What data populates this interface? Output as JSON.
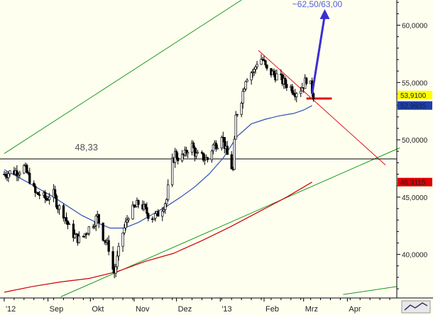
{
  "chart_data": {
    "type": "candlestick",
    "title": "",
    "xlabel": "",
    "ylabel": "",
    "ylim": [
      36.2,
      62.2
    ],
    "y_ticks": [
      40,
      45,
      50,
      55,
      60
    ],
    "y_tick_labels": [
      "40,0000",
      "45,0000",
      "50,0000",
      "55,0000",
      "60,0000"
    ],
    "x_ticks": [
      {
        "day": 0,
        "label": "'12"
      },
      {
        "day": 31,
        "label": "Sep"
      },
      {
        "day": 61,
        "label": "Okt"
      },
      {
        "day": 92,
        "label": "Nov"
      },
      {
        "day": 122,
        "label": "Dez"
      },
      {
        "day": 153,
        "label": "'13"
      },
      {
        "day": 184,
        "label": "Feb"
      },
      {
        "day": 212,
        "label": "Mrz"
      },
      {
        "day": 243,
        "label": "Apr"
      }
    ],
    "x_range_days": [
      -3,
      278
    ],
    "grid": false,
    "price_tags": [
      {
        "value": 53.91,
        "label": "53,9100",
        "color": "#FFFF00",
        "text_color": "#000000"
      },
      {
        "value": 52.9935,
        "label": "52,9935",
        "color": "#1F3FA6",
        "text_color": "#FFFFFF"
      },
      {
        "value": 46.3115,
        "label": "46,3115",
        "color": "#DD0000",
        "text_color": "#FFFFFF"
      }
    ],
    "annotations": {
      "level_label": "48,33",
      "level_value": 48.33,
      "target_label": "~62,50/63,00"
    },
    "series": [
      {
        "kind": "price_path",
        "points": [
          [
            0,
            47.0
          ],
          [
            5,
            47.2
          ],
          [
            10,
            47.3
          ],
          [
            14,
            47.6
          ],
          [
            18,
            46.6
          ],
          [
            22,
            45.3
          ],
          [
            26,
            45.2
          ],
          [
            30,
            44.8
          ],
          [
            34,
            45.6
          ],
          [
            38,
            44.2
          ],
          [
            42,
            43.6
          ],
          [
            46,
            42.3
          ],
          [
            50,
            41.6
          ],
          [
            54,
            41.2
          ],
          [
            58,
            42.0
          ],
          [
            62,
            42.6
          ],
          [
            66,
            43.3
          ],
          [
            70,
            41.6
          ],
          [
            74,
            40.6
          ],
          [
            76,
            39.0
          ],
          [
            78,
            38.4
          ],
          [
            80,
            39.6
          ],
          [
            83,
            41.6
          ],
          [
            86,
            42.6
          ],
          [
            88,
            43.5
          ],
          [
            92,
            44.0
          ],
          [
            96,
            44.6
          ],
          [
            100,
            43.8
          ],
          [
            104,
            43.2
          ],
          [
            108,
            43.4
          ],
          [
            112,
            44.1
          ],
          [
            115,
            44.8
          ],
          [
            118,
            47.6
          ],
          [
            121,
            48.8
          ],
          [
            124,
            48.3
          ],
          [
            128,
            48.7
          ],
          [
            132,
            49.8
          ],
          [
            136,
            48.6
          ],
          [
            140,
            48.5
          ],
          [
            144,
            48.3
          ],
          [
            148,
            49.5
          ],
          [
            152,
            49.8
          ],
          [
            154,
            50.6
          ],
          [
            157,
            49.0
          ],
          [
            159,
            48.3
          ],
          [
            162,
            47.3
          ],
          [
            164,
            52.0
          ],
          [
            166,
            52.9
          ],
          [
            168,
            53.6
          ],
          [
            171,
            55.4
          ],
          [
            174,
            55.9
          ],
          [
            177,
            56.0
          ],
          [
            180,
            57.2
          ],
          [
            183,
            57.0
          ],
          [
            186,
            56.0
          ],
          [
            190,
            55.8
          ],
          [
            194,
            55.5
          ],
          [
            198,
            55.0
          ],
          [
            202,
            54.7
          ],
          [
            206,
            54.2
          ],
          [
            210,
            54.5
          ],
          [
            212,
            54.8
          ],
          [
            215,
            55.6
          ],
          [
            217,
            54.7
          ],
          [
            219,
            53.9
          ]
        ]
      },
      {
        "kind": "moving_average_blue",
        "color": "#2D4FB5",
        "points": [
          [
            0,
            47.4
          ],
          [
            15,
            46.4
          ],
          [
            25,
            45.7
          ],
          [
            35,
            45.0
          ],
          [
            45,
            44.2
          ],
          [
            55,
            43.4
          ],
          [
            65,
            42.8
          ],
          [
            75,
            42.3
          ],
          [
            85,
            42.3
          ],
          [
            95,
            42.8
          ],
          [
            105,
            43.5
          ],
          [
            115,
            44.2
          ],
          [
            125,
            45.0
          ],
          [
            135,
            45.9
          ],
          [
            145,
            47.0
          ],
          [
            155,
            48.4
          ],
          [
            165,
            50.3
          ],
          [
            175,
            51.4
          ],
          [
            185,
            51.8
          ],
          [
            195,
            52.1
          ],
          [
            205,
            52.3
          ],
          [
            212,
            52.6
          ],
          [
            218,
            52.99
          ]
        ]
      },
      {
        "kind": "moving_average_red",
        "color": "#CC0000",
        "points": [
          [
            0,
            36.7
          ],
          [
            20,
            37.2
          ],
          [
            40,
            37.6
          ],
          [
            60,
            37.9
          ],
          [
            80,
            38.5
          ],
          [
            100,
            39.4
          ],
          [
            120,
            40.1
          ],
          [
            140,
            41.2
          ],
          [
            160,
            42.4
          ],
          [
            180,
            43.7
          ],
          [
            200,
            45.0
          ],
          [
            218,
            46.31
          ]
        ]
      }
    ],
    "trendlines": [
      {
        "name": "",
        "color": "#1A9A1A",
        "from": [
          0,
          48.8
        ],
        "to": [
          168,
          62.2
        ]
      },
      {
        "name": "",
        "color": "#1A9A1A",
        "from": [
          40,
          36.3
        ],
        "to": [
          280,
          49.3
        ]
      },
      {
        "name": "",
        "color": "#1A9A1A",
        "from": [
          240,
          36.5
        ],
        "to": [
          278,
          37.2
        ]
      },
      {
        "name": "",
        "color": "#E01010",
        "from": [
          180,
          57.8
        ],
        "to": [
          270,
          47.8
        ]
      },
      {
        "name": "",
        "color": "#000000",
        "from": [
          -3,
          48.33
        ],
        "to": [
          278,
          48.33
        ]
      },
      {
        "name": "",
        "color": "#E01010",
        "from": [
          214,
          53.6
        ],
        "to": [
          232,
          53.6
        ]
      }
    ],
    "target_arrow": {
      "color": "#3A2FD0",
      "from": [
        218,
        54.0
      ],
      "to": [
        227,
        61.4
      ]
    }
  }
}
